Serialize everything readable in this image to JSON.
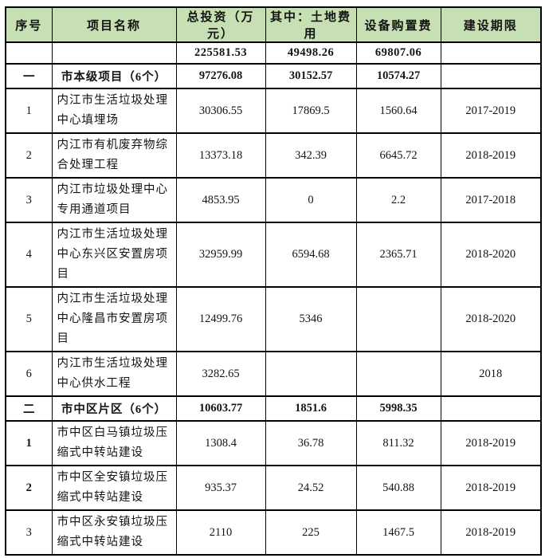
{
  "colors": {
    "header_bg": "#c6e0b4",
    "border": "#000000",
    "text": "#141414",
    "page_bg": "#ffffff"
  },
  "table": {
    "headers": [
      "序号",
      "项目名称",
      "总投资（万元）",
      "其中：土地费用",
      "设备购置费",
      "建设期限"
    ],
    "rows": [
      {
        "type": "totals",
        "cells": [
          "",
          "",
          "225581.53",
          "49498.26",
          "69807.06",
          ""
        ]
      },
      {
        "type": "section",
        "cells": [
          "一",
          "市本级项目（6个）",
          "97276.08",
          "30152.57",
          "10574.27",
          ""
        ]
      },
      {
        "type": "data",
        "bold_index": false,
        "cells": [
          "1",
          "内江市生活垃圾处理中心填埋场",
          "30306.55",
          "17869.5",
          "1560.64",
          "2017-2019"
        ]
      },
      {
        "type": "data",
        "bold_index": false,
        "cells": [
          "2",
          "内江市有机废弃物综合处理工程",
          "13373.18",
          "342.39",
          "6645.72",
          "2018-2019"
        ]
      },
      {
        "type": "data",
        "bold_index": false,
        "cells": [
          "3",
          "内江市垃圾处理中心专用通道项目",
          "4853.95",
          "0",
          "2.2",
          "2017-2018"
        ]
      },
      {
        "type": "data",
        "bold_index": false,
        "cells": [
          "4",
          "内江市生活垃圾处理中心东兴区安置房项目",
          "32959.99",
          "6594.68",
          "2365.71",
          "2018-2020"
        ]
      },
      {
        "type": "data",
        "bold_index": false,
        "cells": [
          "5",
          "内江市生活垃圾处理中心隆昌市安置房项目",
          "12499.76",
          "5346",
          "",
          "2018-2020"
        ]
      },
      {
        "type": "data",
        "bold_index": false,
        "cells": [
          "6",
          "内江市生活垃圾处理中心供水工程",
          "3282.65",
          "",
          "",
          "2018"
        ]
      },
      {
        "type": "section",
        "cells": [
          "二",
          "市中区片区（6个）",
          "10603.77",
          "1851.6",
          "5998.35",
          ""
        ]
      },
      {
        "type": "data",
        "bold_index": true,
        "cells": [
          "1",
          "市中区白马镇垃圾压缩式中转站建设",
          "1308.4",
          "36.78",
          "811.32",
          "2018-2019"
        ]
      },
      {
        "type": "data",
        "bold_index": true,
        "cells": [
          "2",
          "市中区全安镇垃圾压缩式中转站建设",
          "935.37",
          "24.52",
          "540.88",
          "2018-2019"
        ]
      },
      {
        "type": "data",
        "bold_index": false,
        "cells": [
          "3",
          "市中区永安镇垃圾压缩式中转站建设",
          "2110",
          "225",
          "1467.5",
          "2018-2019"
        ]
      }
    ]
  }
}
